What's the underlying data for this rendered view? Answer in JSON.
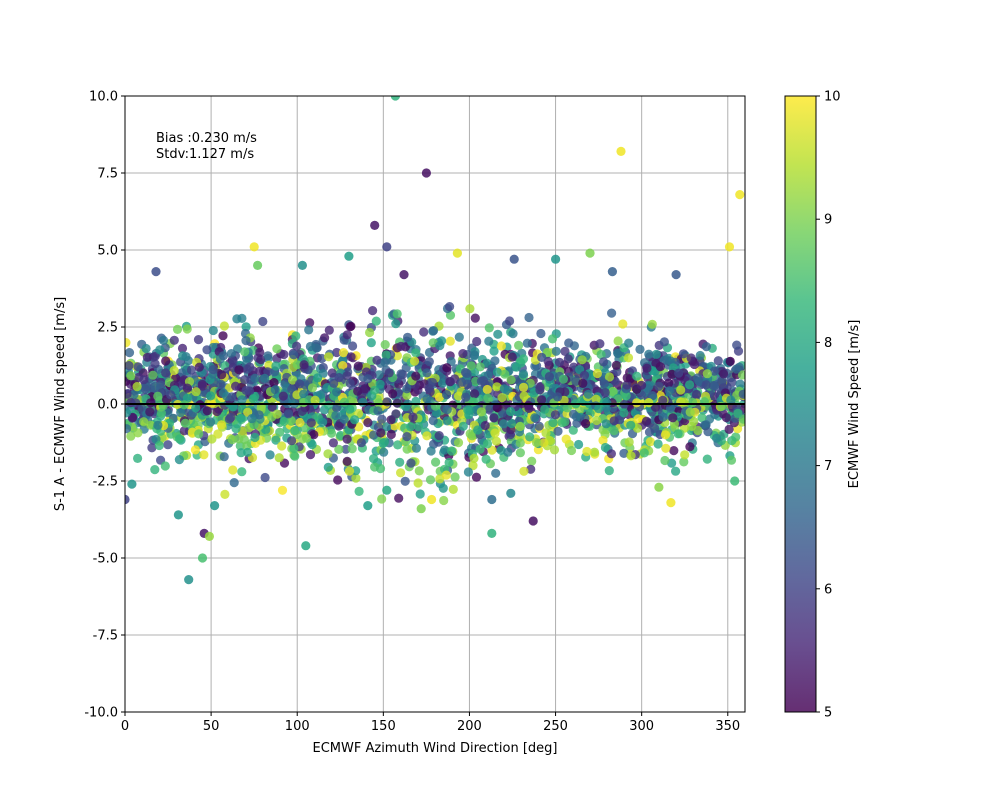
{
  "chart_data": {
    "type": "scatter",
    "title": "",
    "xlabel": "ECMWF Azimuth Wind Direction [deg]",
    "ylabel": "S-1 A - ECMWF Wind speed [m/s]",
    "xlim": [
      0,
      360
    ],
    "ylim": [
      -10,
      10
    ],
    "x_ticks": [
      0,
      50,
      100,
      150,
      200,
      250,
      300,
      350
    ],
    "y_ticks": [
      "10.0",
      "7.5",
      "5.0",
      "2.5",
      "0.0",
      "-2.5",
      "-5.0",
      "-7.5",
      "-10.0"
    ],
    "y_tick_values": [
      10,
      7.5,
      5,
      2.5,
      0,
      -2.5,
      -5,
      -7.5,
      -10
    ],
    "grid": true,
    "reference_line_y": 0,
    "annotations": [
      "Bias :0.230 m/s",
      "Stdv:1.127 m/s"
    ],
    "colorbar": {
      "label": "ECMWF Wind Speed [m/s]",
      "range": [
        5,
        10
      ],
      "ticks": [
        "5",
        "6",
        "7",
        "8",
        "9",
        "10"
      ],
      "colormap": "viridis",
      "stops": [
        "#440154",
        "#482878",
        "#3e4989",
        "#31688e",
        "#26828e",
        "#1f9e89",
        "#35b779",
        "#6ece58",
        "#b5de2b",
        "#fde725"
      ]
    },
    "notable_points": [
      {
        "x": 157,
        "y": 10.0,
        "c": 8.2
      },
      {
        "x": 175,
        "y": 7.5,
        "c": 5.2
      },
      {
        "x": 288,
        "y": 8.2,
        "c": 9.9
      },
      {
        "x": 357,
        "y": 6.8,
        "c": 9.9
      },
      {
        "x": 145,
        "y": 5.8,
        "c": 5.3
      },
      {
        "x": 152,
        "y": 5.1,
        "c": 6.0
      },
      {
        "x": 75,
        "y": 5.1,
        "c": 9.9
      },
      {
        "x": 270,
        "y": 4.9,
        "c": 9.0
      },
      {
        "x": 193,
        "y": 4.9,
        "c": 9.8
      },
      {
        "x": 351,
        "y": 5.1,
        "c": 9.9
      },
      {
        "x": 162,
        "y": 4.2,
        "c": 5.3
      },
      {
        "x": 250,
        "y": 4.7,
        "c": 7.6
      },
      {
        "x": 130,
        "y": 4.8,
        "c": 7.8
      },
      {
        "x": 77,
        "y": 4.5,
        "c": 8.8
      },
      {
        "x": 103,
        "y": 4.5,
        "c": 7.5
      },
      {
        "x": 18,
        "y": 4.3,
        "c": 6.2
      },
      {
        "x": 320,
        "y": 4.2,
        "c": 6.4
      },
      {
        "x": 226,
        "y": 4.7,
        "c": 6.3
      },
      {
        "x": 283,
        "y": 4.3,
        "c": 6.5
      },
      {
        "x": 45,
        "y": -5.0,
        "c": 8.5
      },
      {
        "x": 37,
        "y": -5.7,
        "c": 7.5
      },
      {
        "x": 46,
        "y": -4.2,
        "c": 5.3
      },
      {
        "x": 49,
        "y": -4.3,
        "c": 9.2
      },
      {
        "x": 105,
        "y": -4.6,
        "c": 8.0
      },
      {
        "x": 213,
        "y": -4.2,
        "c": 8.2
      },
      {
        "x": 237,
        "y": -3.8,
        "c": 5.2
      },
      {
        "x": 31,
        "y": -3.6,
        "c": 7.6
      },
      {
        "x": 172,
        "y": -3.4,
        "c": 9.0
      },
      {
        "x": 141,
        "y": -3.3,
        "c": 7.8
      },
      {
        "x": 317,
        "y": -3.2,
        "c": 9.9
      },
      {
        "x": 213,
        "y": -3.1,
        "c": 6.8
      },
      {
        "x": 224,
        "y": -2.9,
        "c": 7.3
      },
      {
        "x": 0,
        "y": -3.1,
        "c": 6.0
      },
      {
        "x": 52,
        "y": -3.3,
        "c": 7.6
      },
      {
        "x": 178,
        "y": -3.1,
        "c": 9.9
      },
      {
        "x": 152,
        "y": -2.8,
        "c": 8.0
      },
      {
        "x": 310,
        "y": -2.7,
        "c": 9.1
      },
      {
        "x": 354,
        "y": -2.5,
        "c": 8.4
      },
      {
        "x": 4,
        "y": -2.6,
        "c": 7.6
      }
    ],
    "density": {
      "n": 2600,
      "seed": 12345,
      "sigma_x": [
        [
          0,
          0.65
        ],
        [
          25,
          0.9
        ],
        [
          110,
          1.05
        ],
        [
          160,
          1.2
        ],
        [
          200,
          1.1
        ],
        [
          260,
          1.0
        ],
        [
          300,
          0.85
        ],
        [
          360,
          0.8
        ]
      ]
    }
  }
}
